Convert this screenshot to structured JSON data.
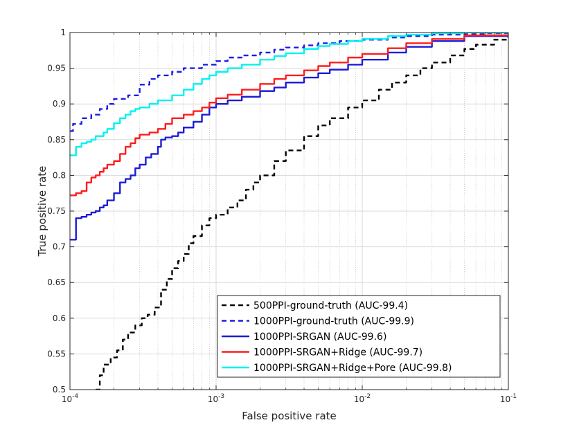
{
  "chart_data": {
    "type": "line",
    "title": "",
    "xlabel": "False positive rate",
    "ylabel": "True positive rate",
    "xscale": "log",
    "xlim": [
      0.0001,
      0.1
    ],
    "ylim": [
      0.5,
      1
    ],
    "grid": true,
    "legend_position": "bottom-right",
    "x_ticks": [
      {
        "value": 0.0001,
        "base": "10",
        "exp": "-4"
      },
      {
        "value": 0.001,
        "base": "10",
        "exp": "-3"
      },
      {
        "value": 0.01,
        "base": "10",
        "exp": "-2"
      },
      {
        "value": 0.1,
        "base": "10",
        "exp": "-1"
      }
    ],
    "y_ticks": [
      "0.5",
      "0.55",
      "0.6",
      "0.65",
      "0.7",
      "0.75",
      "0.8",
      "0.85",
      "0.9",
      "0.95",
      "1"
    ],
    "series": [
      {
        "name": "500PPI-ground-truth (AUC-99.4)",
        "color": "#000000",
        "dash": "dashed",
        "x": [
          0.00015,
          0.00016,
          0.00017,
          0.00019,
          0.00021,
          0.00023,
          0.00025,
          0.00028,
          0.00031,
          0.00034,
          0.00038,
          0.00042,
          0.00046,
          0.0005,
          0.00055,
          0.0006,
          0.00065,
          0.0007,
          0.0008,
          0.0009,
          0.001,
          0.0012,
          0.0014,
          0.0016,
          0.0018,
          0.002,
          0.0025,
          0.003,
          0.004,
          0.005,
          0.006,
          0.008,
          0.01,
          0.013,
          0.016,
          0.02,
          0.025,
          0.03,
          0.04,
          0.05,
          0.06,
          0.08,
          0.1
        ],
        "y": [
          0.5,
          0.52,
          0.535,
          0.545,
          0.555,
          0.57,
          0.58,
          0.59,
          0.6,
          0.605,
          0.615,
          0.64,
          0.655,
          0.67,
          0.68,
          0.69,
          0.705,
          0.715,
          0.73,
          0.74,
          0.745,
          0.755,
          0.765,
          0.78,
          0.79,
          0.8,
          0.82,
          0.835,
          0.855,
          0.87,
          0.88,
          0.895,
          0.905,
          0.92,
          0.93,
          0.94,
          0.95,
          0.958,
          0.968,
          0.977,
          0.983,
          0.99,
          0.995
        ]
      },
      {
        "name": "1000PPI-ground-truth (AUC-99.9)",
        "color": "#1c1ce6",
        "dash": "dashed",
        "x": [
          0.0001,
          0.000105,
          0.00012,
          0.00014,
          0.00016,
          0.00018,
          0.0002,
          0.00025,
          0.0003,
          0.00035,
          0.0004,
          0.0005,
          0.0006,
          0.0008,
          0.001,
          0.0012,
          0.0015,
          0.002,
          0.0025,
          0.003,
          0.004,
          0.005,
          0.007,
          0.01,
          0.015,
          0.02,
          0.03,
          0.05,
          0.07,
          0.1
        ],
        "y": [
          0.862,
          0.872,
          0.88,
          0.885,
          0.893,
          0.9,
          0.907,
          0.912,
          0.927,
          0.935,
          0.94,
          0.945,
          0.95,
          0.955,
          0.96,
          0.965,
          0.968,
          0.972,
          0.976,
          0.979,
          0.982,
          0.985,
          0.988,
          0.99,
          0.993,
          0.995,
          0.997,
          0.998,
          0.999,
          1.0
        ]
      },
      {
        "name": "1000PPI-SRGAN (AUC-99.6)",
        "color": "#1c1cd6",
        "dash": "solid",
        "x": [
          0.0001,
          0.000105,
          0.00011,
          0.00012,
          0.00013,
          0.00014,
          0.00015,
          0.00016,
          0.00017,
          0.00018,
          0.0002,
          0.00022,
          0.00024,
          0.00026,
          0.00028,
          0.0003,
          0.00033,
          0.00036,
          0.0004,
          0.00042,
          0.00045,
          0.0005,
          0.00055,
          0.0006,
          0.0007,
          0.0008,
          0.0009,
          0.001,
          0.0012,
          0.0015,
          0.002,
          0.0025,
          0.003,
          0.004,
          0.005,
          0.006,
          0.008,
          0.01,
          0.015,
          0.02,
          0.03,
          0.05,
          0.1
        ],
        "y": [
          0.71,
          0.71,
          0.74,
          0.742,
          0.745,
          0.748,
          0.75,
          0.755,
          0.758,
          0.765,
          0.775,
          0.79,
          0.795,
          0.8,
          0.81,
          0.815,
          0.825,
          0.83,
          0.84,
          0.85,
          0.853,
          0.855,
          0.86,
          0.867,
          0.875,
          0.885,
          0.895,
          0.9,
          0.905,
          0.91,
          0.918,
          0.923,
          0.93,
          0.937,
          0.943,
          0.948,
          0.955,
          0.962,
          0.972,
          0.98,
          0.988,
          0.995,
          1.0
        ]
      },
      {
        "name": "1000PPI-SRGAN+Ridge (AUC-99.7)",
        "color": "#ff1c1c",
        "dash": "solid",
        "x": [
          0.0001,
          0.00011,
          0.00012,
          0.00013,
          0.00014,
          0.00015,
          0.00016,
          0.00017,
          0.00018,
          0.0002,
          0.00022,
          0.00024,
          0.00026,
          0.00028,
          0.0003,
          0.00035,
          0.0004,
          0.00045,
          0.0005,
          0.0006,
          0.0007,
          0.0008,
          0.0009,
          0.001,
          0.0012,
          0.0015,
          0.002,
          0.0025,
          0.003,
          0.004,
          0.005,
          0.006,
          0.008,
          0.01,
          0.015,
          0.02,
          0.03,
          0.05,
          0.1
        ],
        "y": [
          0.772,
          0.775,
          0.778,
          0.79,
          0.797,
          0.8,
          0.805,
          0.81,
          0.815,
          0.82,
          0.83,
          0.84,
          0.845,
          0.852,
          0.857,
          0.86,
          0.865,
          0.872,
          0.88,
          0.885,
          0.89,
          0.895,
          0.902,
          0.908,
          0.913,
          0.92,
          0.928,
          0.935,
          0.94,
          0.947,
          0.953,
          0.958,
          0.965,
          0.97,
          0.978,
          0.985,
          0.991,
          0.996,
          1.0
        ]
      },
      {
        "name": "1000PPI-SRGAN+Ridge+Pore (AUC-99.8)",
        "color": "#00f2f2",
        "dash": "solid",
        "x": [
          0.0001,
          0.00011,
          0.00012,
          0.00013,
          0.00014,
          0.00015,
          0.00017,
          0.00018,
          0.0002,
          0.00022,
          0.00024,
          0.00026,
          0.00028,
          0.0003,
          0.00035,
          0.0004,
          0.0005,
          0.0006,
          0.0007,
          0.0008,
          0.0009,
          0.001,
          0.0012,
          0.0015,
          0.002,
          0.0025,
          0.003,
          0.004,
          0.005,
          0.006,
          0.008,
          0.01,
          0.015,
          0.02,
          0.03,
          0.05,
          0.1
        ],
        "y": [
          0.828,
          0.84,
          0.845,
          0.847,
          0.85,
          0.855,
          0.86,
          0.865,
          0.873,
          0.88,
          0.885,
          0.89,
          0.893,
          0.895,
          0.9,
          0.905,
          0.912,
          0.92,
          0.928,
          0.935,
          0.94,
          0.945,
          0.95,
          0.955,
          0.962,
          0.967,
          0.971,
          0.977,
          0.981,
          0.984,
          0.988,
          0.991,
          0.995,
          0.997,
          0.999,
          1.0,
          1.0
        ]
      }
    ]
  }
}
